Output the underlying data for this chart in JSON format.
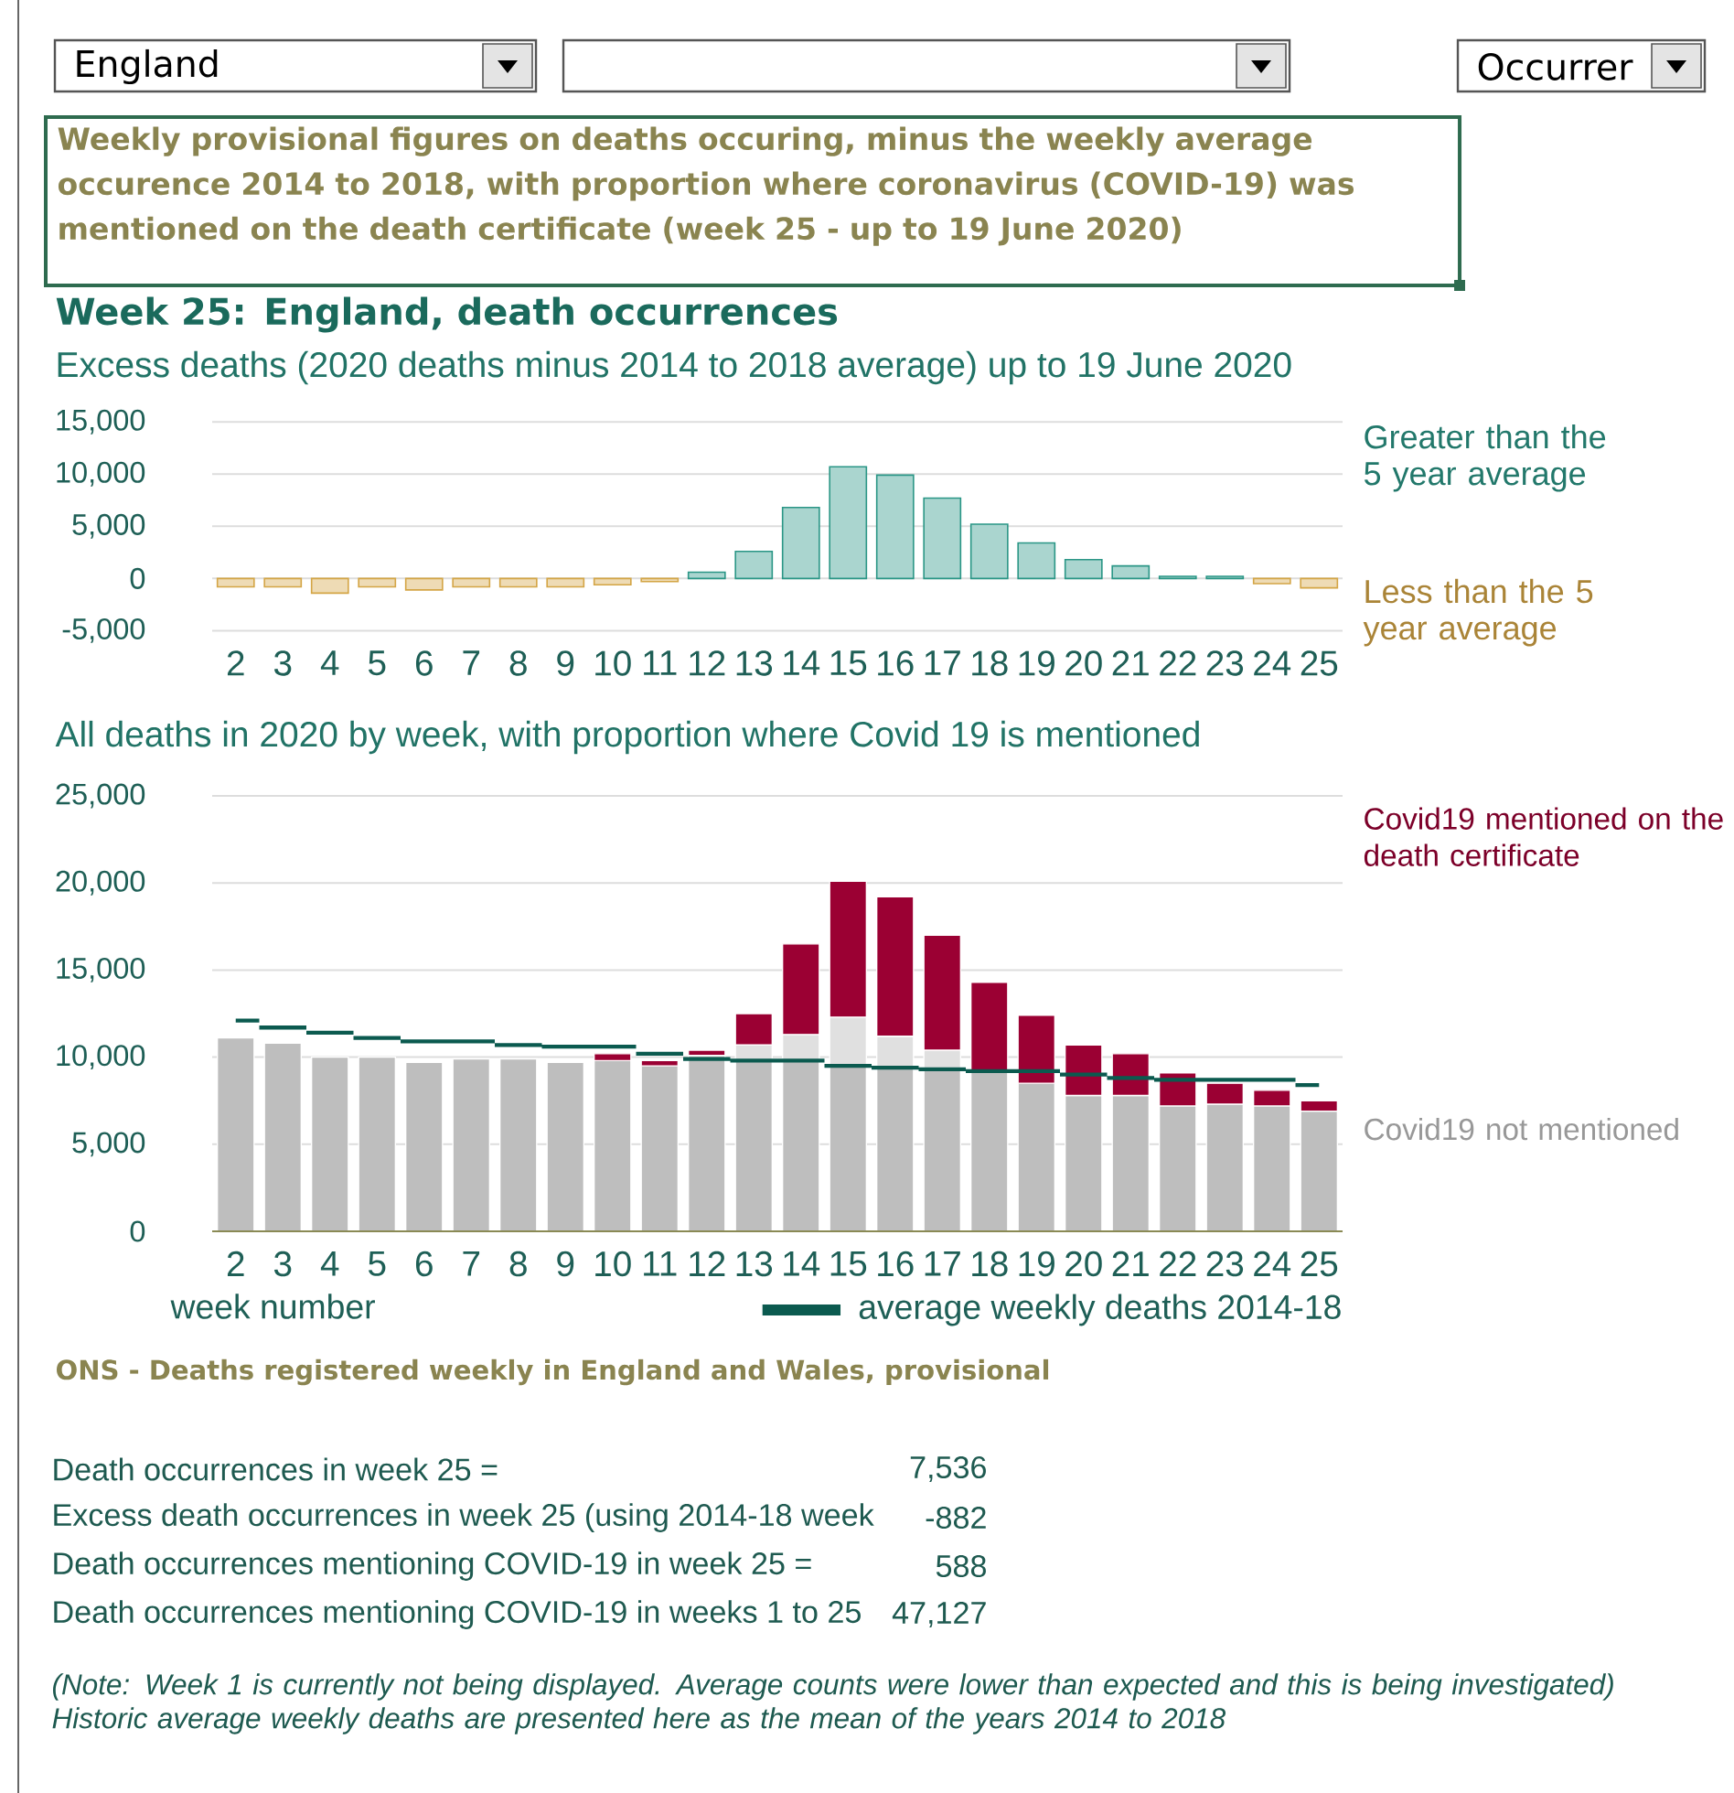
{
  "chart_data": [
    {
      "type": "other",
      "title": "Weekly provisional figures on deaths occuring, minus the weekly average occurence 2014 to 2018, with proportion where coronavirus (COVID-19) was mentioned on the death certificate (week 25 - up to 19 June 2020)",
      "annotations": [
        "England",
        "Occurrer"
      ]
    },
    {
      "type": "bar",
      "title": "Week 25: England, death occurrences",
      "subtitle": "Excess deaths (2020 deaths minus 2014 to 2018 average) up to 19 June 2020",
      "categories": [
        "2",
        "3",
        "4",
        "5",
        "6",
        "7",
        "8",
        "9",
        "10",
        "11",
        "12",
        "13",
        "14",
        "15",
        "16",
        "17",
        "18",
        "19",
        "20",
        "21",
        "22",
        "23",
        "24",
        "25"
      ],
      "series": [
        {
          "name": "Greater than the 5 year average",
          "color": "#2a9686",
          "values": [
            null,
            null,
            null,
            null,
            null,
            null,
            null,
            null,
            null,
            null,
            600,
            2600,
            6800,
            10700,
            9900,
            7700,
            5200,
            3400,
            1800,
            1200,
            200,
            200,
            null,
            null
          ]
        },
        {
          "name": "Less than the 5 year average",
          "color": "#d4a545",
          "values": [
            -800,
            -800,
            -1400,
            -800,
            -1100,
            -800,
            -800,
            -800,
            -600,
            -300,
            null,
            null,
            null,
            null,
            null,
            null,
            null,
            null,
            null,
            null,
            null,
            null,
            -500,
            -900
          ]
        }
      ],
      "ylim": [
        -5000,
        15000
      ],
      "yticks": [
        {
          "value": -5000,
          "label": "-5,000"
        },
        0,
        {
          "value": 5000,
          "label": "5,000"
        },
        {
          "value": 10000,
          "label": "10,000"
        },
        {
          "value": 15000,
          "label": "15,000"
        }
      ],
      "grid": "y"
    },
    {
      "type": "bar",
      "stacked": true,
      "title": "All deaths in 2020 by week, with proportion where Covid 19 is mentioned",
      "xlabel": "week number",
      "categories": [
        "2",
        "3",
        "4",
        "5",
        "6",
        "7",
        "8",
        "9",
        "10",
        "11",
        "12",
        "13",
        "14",
        "15",
        "16",
        "17",
        "18",
        "19",
        "20",
        "21",
        "22",
        "23",
        "24",
        "25"
      ],
      "series": [
        {
          "name": "Covid19 not mentioned",
          "color": "#bebebe",
          "values": [
            11100,
            10800,
            10000,
            10000,
            9700,
            9900,
            9900,
            9700,
            9800,
            9500,
            10100,
            9800,
            9800,
            9500,
            9400,
            9300,
            9200,
            8500,
            7800,
            7800,
            7200,
            7300,
            7200,
            6900
          ]
        },
        {
          "color": "#e0e0e0",
          "values": [
            null,
            null,
            null,
            null,
            null,
            null,
            null,
            null,
            null,
            null,
            null,
            900,
            1500,
            2800,
            1800,
            1100,
            null,
            null,
            null,
            null,
            null,
            null,
            null,
            null
          ]
        },
        {
          "name": "Covid19 mentioned on the death certificate",
          "color": "#9b0033",
          "values": [
            null,
            null,
            null,
            null,
            null,
            null,
            null,
            null,
            400,
            300,
            300,
            1800,
            5200,
            7800,
            8000,
            6600,
            5100,
            3900,
            2900,
            2400,
            1900,
            1200,
            900,
            600
          ]
        },
        {
          "type": "step",
          "name": "average weekly deaths 2014-18",
          "color": "#0b5a4f",
          "values": [
            12100,
            11700,
            11400,
            11100,
            10900,
            10900,
            10700,
            10600,
            10600,
            10200,
            9900,
            9800,
            9800,
            9500,
            9400,
            9300,
            9200,
            9200,
            9000,
            8800,
            8700,
            8700,
            8700,
            8400
          ]
        }
      ],
      "ylim": [
        0,
        25000
      ],
      "yticks": [
        0,
        {
          "value": 5000,
          "label": "5,000"
        },
        {
          "value": 10000,
          "label": "10,000"
        },
        {
          "value": 15000,
          "label": "15,000"
        },
        {
          "value": 20000,
          "label": "20,000"
        },
        {
          "value": 25000,
          "label": "25,000"
        }
      ],
      "grid": "y",
      "legend": "bottom right",
      "annotations": [
        "ONS - Deaths registered weekly in England and Wales, provisional"
      ]
    },
    {
      "type": "other",
      "annotations": [
        "Death occurrences in week 25 =",
        "7,536",
        "Excess death occurrences in week 25 (using 2014-18 week",
        "-882",
        "Death occurrences mentioning COVID-19 in week 25 =",
        "588",
        "Death occurrences mentioning COVID-19 in weeks 1 to 25",
        "47,127",
        "(Note: Week 1 is currently not being displayed. Average counts were lower than expected and this is being investigated)",
        "Historic average weekly deaths are presented here as the mean of the years 2014 to 2018"
      ]
    }
  ]
}
